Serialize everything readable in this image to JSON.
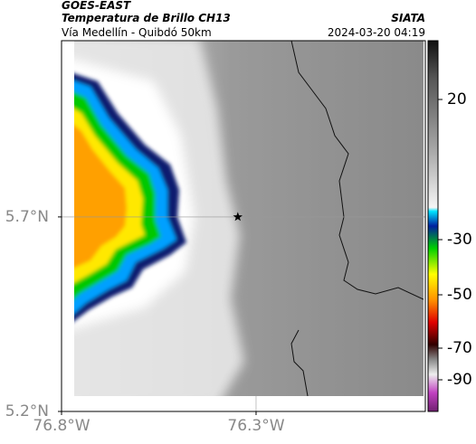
{
  "header": {
    "title": "GOES-EAST",
    "subtitle": "Temperatura de Brillo CH13",
    "source": "SIATA",
    "route": "Vía Medellín - Quibdó 50km",
    "timestamp": "2024-03-20 04:19"
  },
  "map": {
    "lat_lim": [
      5.2,
      6.153
    ],
    "lon_lim": [
      -76.8,
      -75.865
    ],
    "lat_ticks": [
      {
        "value": 5.7,
        "label": "5.7°N"
      },
      {
        "value": 5.2,
        "label": "5.2°N"
      }
    ],
    "lon_ticks": [
      {
        "value": -76.8,
        "label": "76.8°W"
      },
      {
        "value": -76.3,
        "label": "76.3°W"
      }
    ],
    "marker": {
      "lon": -76.347,
      "lat": 5.7
    }
  },
  "colorbar": {
    "ticks": [
      20,
      -30,
      -50,
      -70,
      -90
    ]
  }
}
